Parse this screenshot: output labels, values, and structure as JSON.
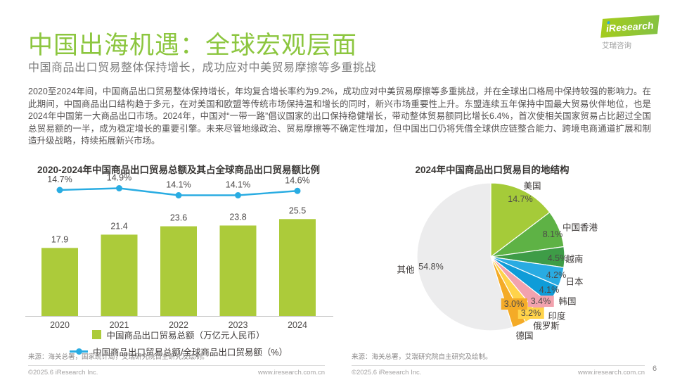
{
  "page": {
    "title": "中国出海机遇：全球宏观层面",
    "subtitle": "中国商品出口贸易整体保持增长，成功应对中美贸易摩擦等多重挑战",
    "body": "2020至2024年间，中国商品出口贸易整体保持增长，年均复合增长率约为9.2%，成功应对中美贸易摩擦等多重挑战，并在全球出口格局中保持较强的影响力。在此期间，中国商品出口结构趋于多元，在对美国和欧盟等传统市场保持温和增长的同时，新兴市场重要性上升。东盟连续五年保持中国最大贸易伙伴地位，也是2024年中国第一大商品出口市场。2024年，中国对“一带一路”倡议国家的出口保持稳健增长，带动整体贸易额同比增长6.4%，首次使相关国家贸易占比超过全国总贸易额的一半，成为稳定增长的重要引擎。未来尽管地缘政治、贸易摩擦等不确定性增加，但中国出口仍将凭借全球供应链整合能力、跨境电商通道扩展和制造升级战略，持续拓展新兴市场。",
    "page_number": "6"
  },
  "logo": {
    "brand_text": "iResearch",
    "caption": "艾瑞咨询"
  },
  "colors": {
    "accent_green": "#8CC63F",
    "bar_green": "#ACCB3A",
    "line_cyan": "#29ACE2"
  },
  "chart_data": [
    {
      "type": "bar",
      "title": "2020-2024年中国商品出口贸易总额及其占全球商品出口贸易额比例",
      "categories": [
        "2020",
        "2021",
        "2022",
        "2023",
        "2024"
      ],
      "series": [
        {
          "name": "中国商品出口贸易总额（万亿元人民币）",
          "type": "bar",
          "values": [
            17.9,
            21.4,
            23.6,
            23.8,
            25.5
          ],
          "color": "#ACCB3A"
        },
        {
          "name": "中国商品出口贸易总额/全球商品出口贸易额（%）",
          "type": "line",
          "values": [
            14.7,
            14.9,
            14.1,
            14.1,
            14.6
          ],
          "unit": "%",
          "color": "#29ACE2"
        }
      ],
      "ylabel": "",
      "grid": false,
      "legend_position": "bottom",
      "source": "来源：海关总署，国家统计局，艾瑞研究院自主研究及绘制。",
      "footer_left": "©2025.6 iResearch Inc.",
      "footer_right": "www.iresearch.com.cn"
    },
    {
      "type": "pie",
      "title": "2024年中国商品出口贸易目的地结构",
      "start_angle_deg": 0,
      "slices": [
        {
          "label": "美国",
          "value": 14.7,
          "color": "#A5CB39"
        },
        {
          "label": "中国香港",
          "value": 8.1,
          "color": "#5EB245"
        },
        {
          "label": "越南",
          "value": 4.5,
          "color": "#3E9C47"
        },
        {
          "label": "日本",
          "value": 4.2,
          "color": "#29ABE2"
        },
        {
          "label": "韩国",
          "value": 4.1,
          "color": "#0F9CD8"
        },
        {
          "label": "印度",
          "value": 3.4,
          "color": "#F2A2AE"
        },
        {
          "label": "俄罗斯",
          "value": 3.2,
          "color": "#FFD34A"
        },
        {
          "label": "德国",
          "value": 3.0,
          "color": "#F4AB27"
        },
        {
          "label": "其他",
          "value": 54.8,
          "color": "#ECECED"
        }
      ],
      "source": "来源：海关总署，艾瑞研究院自主研究及绘制。",
      "footer_left": "©2025.6 iResearch Inc.",
      "footer_right": "www.iresearch.com.cn"
    }
  ]
}
